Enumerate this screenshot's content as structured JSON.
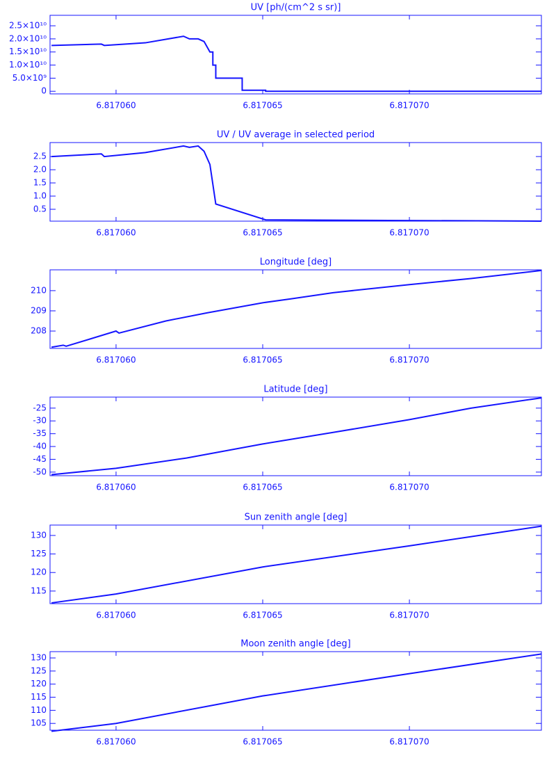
{
  "chart_data": [
    {
      "type": "line",
      "title": "UV [ph/(cm^2 s sr)]",
      "color": "#1414ff",
      "x": [
        6.8170578,
        6.8170595,
        6.8170596,
        6.817061,
        6.8170623,
        6.8170625,
        6.8170628,
        6.817063,
        6.8170632,
        6.8170633,
        6.8170633,
        6.8170634,
        6.8170634,
        6.8170643,
        6.8170643,
        6.8170651,
        6.8170651,
        6.8170745
      ],
      "values": [
        17500000000,
        18000000000,
        17500000000,
        18500000000,
        21000000000,
        20000000000,
        20000000000,
        19000000000,
        15000000000,
        15000000000,
        10000000000,
        10000000000,
        5000000000,
        5000000000,
        400000000,
        400000000,
        0,
        0
      ],
      "xlim": [
        6.81705775,
        6.8170745
      ],
      "ylim": [
        -1000000000,
        29000000000
      ],
      "xticks": [
        {
          "value": 6.81706,
          "label": "6.817060"
        },
        {
          "value": 6.817065,
          "label": "6.817065"
        },
        {
          "value": 6.81707,
          "label": "6.817070"
        }
      ],
      "yticks": [
        0,
        {
          "value": 5000000000,
          "label": "5.0×10⁹"
        },
        {
          "value": 10000000000,
          "label": "1.0×10¹⁰"
        },
        {
          "value": 15000000000,
          "label": "1.5×10¹⁰"
        },
        {
          "value": 20000000000,
          "label": "2.0×10¹⁰"
        },
        {
          "value": 25000000000,
          "label": "2.5×10¹⁰"
        }
      ]
    },
    {
      "type": "line",
      "title": "UV / UV average in selected period",
      "color": "#1414ff",
      "x": [
        6.8170578,
        6.8170595,
        6.8170596,
        6.817061,
        6.8170623,
        6.8170625,
        6.8170628,
        6.817063,
        6.8170632,
        6.8170634,
        6.8170651,
        6.8170745
      ],
      "values": [
        2.5,
        2.6,
        2.5,
        2.65,
        2.9,
        2.85,
        2.9,
        2.7,
        2.2,
        0.7,
        0.1,
        0.05
      ],
      "xlim": [
        6.81705775,
        6.8170745
      ],
      "ylim": [
        0.05,
        3.03
      ],
      "xticks": [
        {
          "value": 6.81706,
          "label": "6.817060"
        },
        {
          "value": 6.817065,
          "label": "6.817065"
        },
        {
          "value": 6.81707,
          "label": "6.817070"
        }
      ],
      "yticks": [
        0.5,
        {
          "value": 1,
          "label": "1.0"
        },
        1.5,
        {
          "value": 2,
          "label": "2.0"
        },
        2.5
      ]
    },
    {
      "type": "line",
      "title": "Longitude [deg]",
      "color": "#1414ff",
      "x": [
        6.8170578,
        6.8170582,
        6.8170583,
        6.8170591,
        6.81706,
        6.8170601,
        6.8170617,
        6.8170631,
        6.817065,
        6.817066,
        6.8170674,
        6.81707,
        6.8170721,
        6.8170745
      ],
      "values": [
        207.2,
        207.3,
        207.25,
        207.6,
        208.0,
        207.9,
        208.5,
        208.9,
        209.4,
        209.6,
        209.9,
        210.3,
        210.6,
        211.0
      ],
      "xlim": [
        6.81705775,
        6.8170745
      ],
      "ylim": [
        207.14,
        211.03
      ],
      "xticks": [
        {
          "value": 6.81706,
          "label": "6.817060"
        },
        {
          "value": 6.817065,
          "label": "6.817065"
        },
        {
          "value": 6.81707,
          "label": "6.817070"
        }
      ],
      "yticks": [
        208,
        209,
        210
      ]
    },
    {
      "type": "line",
      "title": "Latitude [deg]",
      "color": "#1414ff",
      "x": [
        6.8170578,
        6.81706,
        6.8170624,
        6.817065,
        6.8170674,
        6.81707,
        6.8170721,
        6.8170745
      ],
      "values": [
        -51,
        -48.5,
        -44.5,
        -39,
        -34.5,
        -29.5,
        -25,
        -21
      ],
      "xlim": [
        6.81705775,
        6.8170745
      ],
      "ylim": [
        -51.4,
        -20.7
      ],
      "xticks": [
        {
          "value": 6.81706,
          "label": "6.817060"
        },
        {
          "value": 6.817065,
          "label": "6.817065"
        },
        {
          "value": 6.81707,
          "label": "6.817070"
        }
      ],
      "yticks": [
        -50,
        -45,
        -40,
        -35,
        -30,
        -25
      ]
    },
    {
      "type": "line",
      "title": "Sun zenith angle [deg]",
      "color": "#1414ff",
      "x": [
        6.8170578,
        6.81706,
        6.817065,
        6.81707,
        6.8170745
      ],
      "values": [
        111.8,
        114.2,
        121.5,
        127.2,
        132.5
      ],
      "xlim": [
        6.81705775,
        6.8170745
      ],
      "ylim": [
        111.6,
        132.8
      ],
      "xticks": [
        {
          "value": 6.81706,
          "label": "6.817060"
        },
        {
          "value": 6.817065,
          "label": "6.817065"
        },
        {
          "value": 6.81707,
          "label": "6.817070"
        }
      ],
      "yticks": [
        115,
        120,
        125,
        130
      ]
    },
    {
      "type": "line",
      "title": "Moon zenith angle [deg]",
      "color": "#1414ff",
      "x": [
        6.8170578,
        6.81706,
        6.817065,
        6.81707,
        6.8170745
      ],
      "values": [
        102,
        105,
        115.5,
        124,
        131.5
      ],
      "xlim": [
        6.81705775,
        6.8170745
      ],
      "ylim": [
        102.4,
        132.4
      ],
      "xticks": [
        {
          "value": 6.81706,
          "label": "6.817060"
        },
        {
          "value": 6.817065,
          "label": "6.817065"
        },
        {
          "value": 6.81707,
          "label": "6.817070"
        }
      ],
      "yticks": [
        105,
        110,
        115,
        120,
        125,
        130
      ]
    }
  ]
}
